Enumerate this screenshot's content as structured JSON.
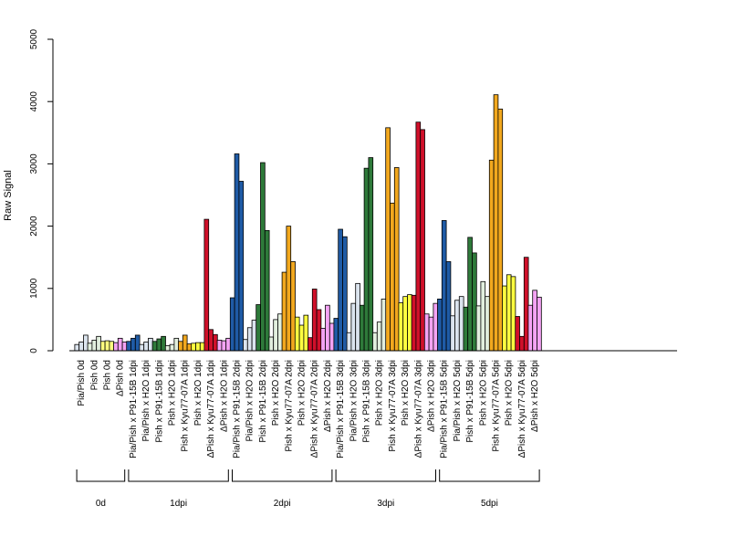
{
  "chart_data": {
    "type": "bar",
    "ylabel": "Raw Signal",
    "ylim": [
      0,
      5000
    ],
    "yticks": [
      0,
      1000,
      2000,
      3000,
      4000,
      5000
    ],
    "categories": [
      "Pia/Pish 0d",
      "Pish 0d",
      "Pish 0d",
      "ΔPish 0d",
      "Pia/Pish x P91-15B 1dpi",
      "Pia/Pish x H2O 1dpi",
      "Pish x P91-15B 1dpi",
      "Pish x H2O 1dpi",
      "Pish x Kyu77-07A 1dpi",
      "Pish x H2O 1dpi",
      "ΔPish x Kyu77-07A 1dpi",
      "ΔPish x H2O 1dpi",
      "Pia/Pish x P91-15B 2dpi",
      "Pia/Pish x H2O 2dpi",
      "Pish x P91-15B 2dpi",
      "Pish x H2O 2dpi",
      "Pish x Kyu77-07A 2dpi",
      "Pish x H2O 2dpi",
      "ΔPish x Kyu77-07A 2dpi",
      "ΔPish x H2O 2dpi",
      "Pia/Pish x P91-15B 3dpi",
      "Pia/Pish x H2O 3dpi",
      "Pish x P91-15B 3dpi",
      "Pish x H2O 3dpi",
      "Pish x Kyu77-07A 3dpi",
      "Pish x H2O 3dpi",
      "ΔPish x Kyu77-07A 3dpi",
      "ΔPish x H2O 3dpi",
      "Pia/Pish x P91-15B 5dpi",
      "Pia/Pish x H2O 5dpi",
      "Pish x P91-15B 5dpi",
      "Pish x H2O 5dpi",
      "Pish x Kyu77-07A 5dpi",
      "Pish x H2O 5dpi",
      "ΔPish x Kyu77-07A 5dpi",
      "ΔPish x H2O 5dpi"
    ],
    "colors": [
      "#dbe4ee",
      "#e2efde",
      "#ffff80",
      "#f4a3f4",
      "#1f5ba6",
      "#dbe4ee",
      "#2e7a3a",
      "#e2efde",
      "#f2a81e",
      "#ffff40",
      "#d0102a",
      "#f4a3f4",
      "#1f5ba6",
      "#dbe4ee",
      "#2e7a3a",
      "#e2efde",
      "#f2a81e",
      "#ffff40",
      "#d0102a",
      "#f4a3f4",
      "#1f5ba6",
      "#dbe4ee",
      "#2e7a3a",
      "#e2efde",
      "#f2a81e",
      "#ffff40",
      "#d0102a",
      "#f4a3f4",
      "#1f5ba6",
      "#dbe4ee",
      "#2e7a3a",
      "#e2efde",
      "#f2a81e",
      "#ffff40",
      "#d0102a",
      "#f4a3f4"
    ],
    "values": [
      [
        100,
        140,
        250
      ],
      [
        120,
        170,
        230
      ],
      [
        150,
        160,
        150
      ],
      [
        130,
        200,
        140
      ],
      [
        150,
        200,
        250
      ],
      [
        100,
        140,
        200
      ],
      [
        150,
        190,
        230
      ],
      [
        80,
        100,
        200
      ],
      [
        150,
        250,
        110
      ],
      [
        120,
        130,
        130
      ],
      [
        2110,
        340,
        260
      ],
      [
        170,
        160,
        200
      ],
      [
        850,
        3160,
        2720
      ],
      [
        180,
        370,
        490
      ],
      [
        740,
        3020,
        1930
      ],
      [
        220,
        500,
        590
      ],
      [
        1260,
        2000,
        1430
      ],
      [
        540,
        410,
        570
      ],
      [
        210,
        990,
        660
      ],
      [
        360,
        730,
        440
      ],
      [
        520,
        1950,
        1830
      ],
      [
        290,
        760,
        1080
      ],
      [
        730,
        2930,
        3100
      ],
      [
        290,
        460,
        830
      ],
      [
        3580,
        2370,
        2940
      ],
      [
        770,
        870,
        900
      ],
      [
        890,
        3670,
        3550
      ],
      [
        590,
        540,
        760
      ],
      [
        830,
        2090,
        1430
      ],
      [
        560,
        810,
        870
      ],
      [
        700,
        1820,
        1570
      ],
      [
        720,
        1110,
        870
      ],
      [
        3060,
        4110,
        3880
      ],
      [
        1040,
        1220,
        1190
      ],
      [
        550,
        230,
        1500
      ],
      [
        730,
        970,
        860
      ]
    ],
    "groups": [
      {
        "label": "0d",
        "start": 0,
        "end": 3
      },
      {
        "label": "1dpi",
        "start": 4,
        "end": 11
      },
      {
        "label": "2dpi",
        "start": 12,
        "end": 19
      },
      {
        "label": "3dpi",
        "start": 20,
        "end": 27
      },
      {
        "label": "5dpi",
        "start": 28,
        "end": 35
      }
    ]
  }
}
